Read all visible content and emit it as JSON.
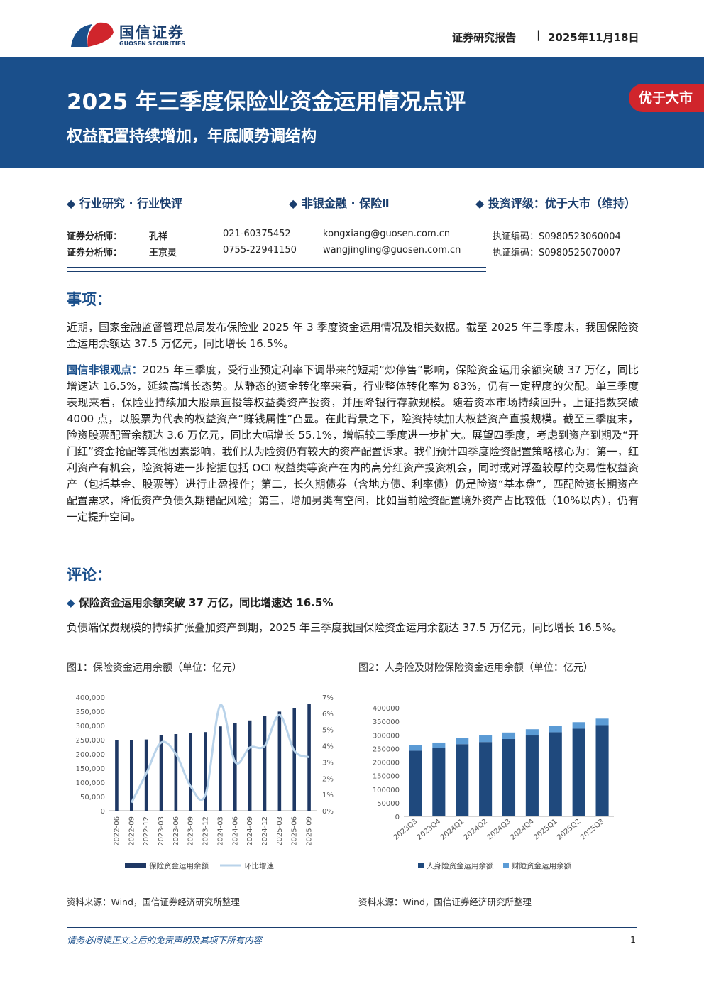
{
  "header": {
    "logo_cn": "国信证券",
    "logo_en": "GUOSEN SECURITIES",
    "report_type": "证券研究报告",
    "date": "2025年11月18日"
  },
  "banner": {
    "title": "2025 年三季度保险业资金运用情况点评",
    "subtitle": "权益配置持续增加，年底顺势调结构",
    "badge": "优于大市"
  },
  "tags": [
    "行业研究 · 行业快评",
    "非银金融 · 保险Ⅱ",
    "投资评级：优于大市（维持）"
  ],
  "analysts": [
    [
      "证券分析师：",
      "孔祥",
      "021-60375452",
      "kongxiang@guosen.com.cn",
      "执证编码：S0980523060004"
    ],
    [
      "证券分析师：",
      "王京灵",
      "0755-22941150",
      "wangjingling@guosen.com.cn",
      "执证编码：S0980525070007"
    ]
  ],
  "section1": {
    "heading": "事项：",
    "text": "近期，国家金融监督管理总局发布保险业 2025 年 3 季度资金运用情况及相关数据。截至 2025 年三季度末，我国保险资金运用余额达 37.5 万亿元，同比增长 16.5%。"
  },
  "view": {
    "label": "国信非银观点：",
    "text": "2025 年三季度，受行业预定利率下调带来的短期“炒停售”影响，保险资金运用余额突破 37 万亿，同比增速达 16.5%，延续高增长态势。从静态的资金转化率来看，行业整体转化率为 83%，仍有一定程度的欠配。单三季度表现来看，保险业持续加大股票直投等权益类资产投资，并压降银行存款规模。随着资本市场持续回升，上证指数突破 4000 点，以股票为代表的权益资产“赚钱属性”凸显。在此背景之下，险资持续加大权益资产直投规模。截至三季度末，险资股票配置余额达 3.6 万亿元，同比大幅增长 55.1%，增幅较二季度进一步扩大。展望四季度，考虑到资产到期及“开门红”资金抢配等其他因素影响，我们认为险资仍有较大的资产配置诉求。我们预计四季度险资配置策略核心为：第一，红利资产有机会，险资将进一步挖掘包括 OCI 权益类等资产在内的高分红资产投资机会，同时或对浮盈较厚的交易性权益资产（包括基金、股票等）进行止盈操作；第二，长久期债券（含地方债、利率债）仍是险资“基本盘”，匹配险资长期资产配置需求，降低资产负债久期错配风险；第三，增加另类有空间，比如当前险资配置境外资产占比较低（10%以内），仍有一定提升空间。"
  },
  "section2": {
    "heading": "评论：",
    "bullet": "保险资金运用余额突破 37 万亿，同比增速达 16.5%",
    "text": "负债端保费规模的持续扩张叠加资产到期，2025 年三季度我国保险资金运用余额达 37.5 万亿元，同比增长 16.5%。"
  },
  "chart_data": [
    {
      "type": "bar",
      "title": "图1：保险资金运用余额（单位：亿元）",
      "source": "资料来源：Wind，国信证券经济研究所整理",
      "categories": [
        "2022-06",
        "2022-09",
        "2022-12",
        "2023-03",
        "2023-06",
        "2023-09",
        "2023-12",
        "2024-03",
        "2024-06",
        "2024-09",
        "2024-12",
        "2025-03",
        "2025-06",
        "2025-09"
      ],
      "series": [
        {
          "name": "保险资金运用余额",
          "color": "#1f3864",
          "values": [
            248000,
            248000,
            251000,
            265000,
            270000,
            274000,
            277000,
            297000,
            309000,
            318000,
            333000,
            349000,
            362000,
            375000
          ]
        },
        {
          "name": "环比增速",
          "color": "#b9d3ea",
          "type": "line",
          "axis": "y2",
          "values": [
            null,
            0.5,
            2.3,
            4.2,
            3.5,
            1.5,
            1.0,
            6.5,
            3.0,
            3.9,
            4.0,
            5.9,
            3.7,
            3.3
          ]
        }
      ],
      "ylim": [
        0,
        400000
      ],
      "yticks": [
        0,
        {
          "value": 50000,
          "label": "50,000"
        },
        {
          "value": 100000,
          "label": "100,000"
        },
        {
          "value": 150000,
          "label": "150,000"
        },
        {
          "value": 200000,
          "label": "200,000"
        },
        {
          "value": 250000,
          "label": "250,000"
        },
        {
          "value": 300000,
          "label": "300,000"
        },
        {
          "value": 350000,
          "label": "350,000"
        },
        {
          "value": 400000,
          "label": "400,000"
        }
      ],
      "y2lim": [
        0,
        7
      ],
      "y2ticks": [
        {
          "value": 0,
          "label": "0%"
        },
        {
          "value": 1,
          "label": "1%"
        },
        {
          "value": 2,
          "label": "2%"
        },
        {
          "value": 3,
          "label": "3%"
        },
        {
          "value": 4,
          "label": "4%"
        },
        {
          "value": 5,
          "label": "5%"
        },
        {
          "value": 6,
          "label": "6%"
        },
        {
          "value": 7,
          "label": "7%"
        }
      ]
    },
    {
      "type": "bar",
      "stacked": true,
      "title": "图2：人身险及财险保险资金运用余额（单位：亿元）",
      "source": "资料来源：Wind，国信证券经济研究所整理",
      "categories": [
        "2023Q3",
        "2023Q4",
        "2024Q1",
        "2024Q2",
        "2024Q3",
        "2024Q4",
        "2025Q1",
        "2025Q2",
        "2025Q3"
      ],
      "series": [
        {
          "name": "人身险资金运用余额",
          "color": "#1f497d",
          "values": [
            242000,
            252000,
            266000,
            274000,
            285000,
            298000,
            310000,
            323000,
            336000
          ]
        },
        {
          "name": "财险资金运用余额",
          "color": "#5b9bd5",
          "values": [
            22000,
            20000,
            24000,
            24000,
            24000,
            23000,
            24000,
            24000,
            24000
          ]
        }
      ],
      "ylim": [
        0,
        400000
      ],
      "yticks": [
        0,
        50000,
        100000,
        150000,
        200000,
        250000,
        300000,
        350000,
        400000
      ]
    }
  ],
  "footer": {
    "disclaimer": "请务必阅读正文之后的免责声明及其项下所有内容",
    "page": "1"
  }
}
